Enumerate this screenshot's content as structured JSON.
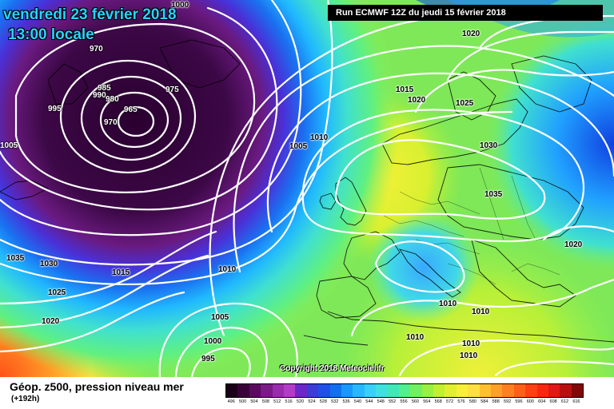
{
  "header": {
    "date": "vendredi 23 février 2018",
    "time": "13:00 locale",
    "run": "Run ECMWF 12Z du jeudi 15 février 2018"
  },
  "footer": {
    "title": "Géop. z500, pression niveau mer",
    "lead": "(+192h)",
    "copyright": "Copyright 2018 Meteociel.fr"
  },
  "scale_labels": [
    "496",
    "500",
    "504",
    "508",
    "512",
    "516",
    "520",
    "524",
    "528",
    "532",
    "536",
    "540",
    "544",
    "548",
    "552",
    "556",
    "560",
    "564",
    "568",
    "572",
    "576",
    "580",
    "584",
    "588",
    "592",
    "596",
    "600",
    "604",
    "608",
    "612",
    "616"
  ],
  "scale_colors": [
    "#1a0018",
    "#3a003a",
    "#5a0a5e",
    "#7a1a86",
    "#9a2aae",
    "#b23cc8",
    "#6a28c8",
    "#3c3cd8",
    "#2050e8",
    "#1070f0",
    "#1898ff",
    "#28b8ff",
    "#38d0f8",
    "#40e0e0",
    "#40e8b8",
    "#50f090",
    "#70f060",
    "#98f040",
    "#c0f030",
    "#e0f030",
    "#f8f038",
    "#ffe040",
    "#ffc030",
    "#ffa028",
    "#ff8020",
    "#ff6018",
    "#ff4010",
    "#f82810",
    "#e01818",
    "#b81010",
    "#800808"
  ],
  "isobar_labels": [
    {
      "text": "1000",
      "light": false
    },
    {
      "text": "970",
      "light": true
    },
    {
      "text": "985",
      "light": true
    },
    {
      "text": "990",
      "light": true
    },
    {
      "text": "980",
      "light": true
    },
    {
      "text": "975",
      "light": true
    },
    {
      "text": "965",
      "light": true
    },
    {
      "text": "970",
      "light": true
    },
    {
      "text": "995",
      "light": true
    },
    {
      "text": "1005",
      "light": true
    },
    {
      "text": "1020",
      "light": false
    },
    {
      "text": "1015",
      "light": false
    },
    {
      "text": "1020",
      "light": false
    },
    {
      "text": "1025",
      "light": false
    },
    {
      "text": "1010",
      "light": false
    },
    {
      "text": "1005",
      "light": false
    },
    {
      "text": "1030",
      "light": false
    },
    {
      "text": "1035",
      "light": false
    },
    {
      "text": "1020",
      "light": false
    },
    {
      "text": "1035",
      "light": false
    },
    {
      "text": "1030",
      "light": false
    },
    {
      "text": "1015",
      "light": false
    },
    {
      "text": "1010",
      "light": false
    },
    {
      "text": "1025",
      "light": false
    },
    {
      "text": "1020",
      "light": false
    },
    {
      "text": "1005",
      "light": false
    },
    {
      "text": "1000",
      "light": false
    },
    {
      "text": "995",
      "light": false
    },
    {
      "text": "1010",
      "light": false
    },
    {
      "text": "1010",
      "light": false
    },
    {
      "text": "1010",
      "light": false
    },
    {
      "text": "1010",
      "light": false
    },
    {
      "text": "1010",
      "light": false
    }
  ]
}
